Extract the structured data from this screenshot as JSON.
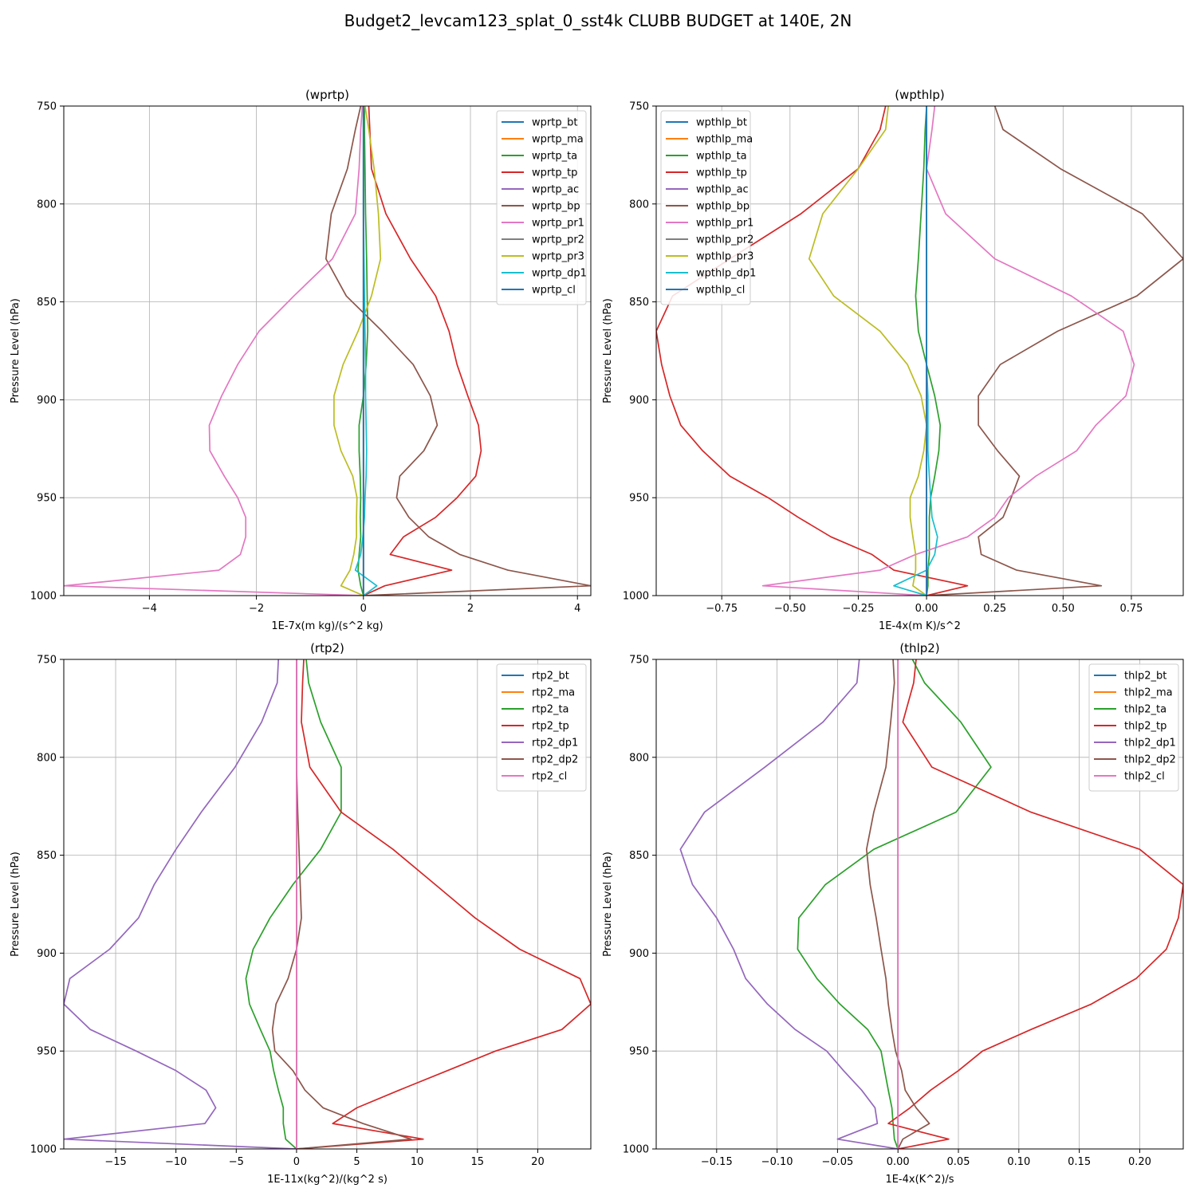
{
  "figure": {
    "suptitle": "Budget2_levcam123_splat_0_sst4k CLUBB BUDGET at 140E, 2N"
  },
  "colors": {
    "grid": "#b0b0b0",
    "palette": [
      "#1f77b4",
      "#ff7f0e",
      "#2ca02c",
      "#d62728",
      "#9467bd",
      "#8c564b",
      "#e377c2",
      "#7f7f7f",
      "#bcbd22",
      "#17becf",
      "#1f77b4"
    ]
  },
  "levels": [
    750,
    762,
    782,
    805,
    828,
    847,
    865,
    882,
    898,
    913,
    926,
    939,
    950,
    960,
    970,
    979,
    987,
    995,
    1000
  ],
  "chart_data": [
    {
      "type": "line",
      "title": "(wprtp)",
      "xlabel": "1E-7x(m kg)/(s^2 kg)",
      "ylabel": "Pressure Level (hPa)",
      "xlim": [
        -5.6,
        4.25
      ],
      "ylim": [
        1000,
        750
      ],
      "xticks": [
        -4,
        -2,
        0,
        2,
        4
      ],
      "xtick_labels": [
        "−4",
        "−2",
        "0",
        "2",
        "4"
      ],
      "yticks": [
        750,
        800,
        850,
        900,
        950,
        1000
      ],
      "ytick_labels": [
        "750",
        "800",
        "850",
        "900",
        "950",
        "1000"
      ],
      "grid": true,
      "legend": "top-right",
      "series": [
        {
          "name": "wprtp_bt",
          "values": [
            0,
            0,
            0,
            0,
            0,
            0,
            0,
            0,
            0,
            0,
            0,
            0,
            0,
            0,
            0,
            0,
            0,
            0,
            0
          ]
        },
        {
          "name": "wprtp_ma",
          "values": [
            0,
            0,
            0,
            0,
            0,
            0,
            0,
            0,
            0,
            0,
            0,
            0,
            0,
            0,
            0,
            0,
            0,
            0,
            0
          ]
        },
        {
          "name": "wprtp_ta",
          "values": [
            0.02,
            0.02,
            0.03,
            0.04,
            0.06,
            0.07,
            0.08,
            0.05,
            0.0,
            -0.08,
            -0.08,
            -0.06,
            -0.05,
            -0.06,
            -0.05,
            -0.08,
            -0.1,
            -0.05,
            0
          ]
        },
        {
          "name": "wprtp_tp",
          "values": [
            0.1,
            0.12,
            0.15,
            0.42,
            0.88,
            1.35,
            1.6,
            1.75,
            1.95,
            2.15,
            2.2,
            2.1,
            1.75,
            1.35,
            0.75,
            0.5,
            1.65,
            0.4,
            0
          ]
        },
        {
          "name": "wprtp_ac",
          "values": [
            0,
            0,
            0,
            0,
            0,
            0,
            0,
            0,
            0,
            0,
            0,
            0,
            0,
            0,
            0,
            0,
            0,
            0,
            0
          ]
        },
        {
          "name": "wprtp_bp",
          "values": [
            -0.05,
            -0.15,
            -0.3,
            -0.6,
            -0.7,
            -0.32,
            0.35,
            0.93,
            1.25,
            1.38,
            1.13,
            0.68,
            0.62,
            0.85,
            1.22,
            1.8,
            2.7,
            4.25,
            0
          ]
        },
        {
          "name": "wprtp_pr1",
          "values": [
            -0.02,
            -0.05,
            -0.08,
            -0.15,
            -0.58,
            -1.3,
            -1.95,
            -2.35,
            -2.65,
            -2.88,
            -2.87,
            -2.6,
            -2.35,
            -2.2,
            -2.2,
            -2.3,
            -2.7,
            -5.6,
            0
          ]
        },
        {
          "name": "wprtp_pr2",
          "values": [
            0,
            0,
            0,
            0,
            0,
            0,
            0,
            0,
            0,
            0,
            0,
            0,
            0,
            0,
            0,
            0,
            0,
            0,
            0
          ]
        },
        {
          "name": "wprtp_pr3",
          "values": [
            0.03,
            0.1,
            0.2,
            0.28,
            0.32,
            0.15,
            -0.1,
            -0.38,
            -0.55,
            -0.55,
            -0.42,
            -0.2,
            -0.12,
            -0.13,
            -0.13,
            -0.18,
            -0.25,
            -0.42,
            0
          ]
        },
        {
          "name": "wprtp_dp1",
          "values": [
            0,
            0,
            0,
            0,
            0.01,
            0.02,
            0.03,
            0.04,
            0.04,
            0.05,
            0.06,
            0.05,
            0.03,
            0.02,
            -0.01,
            -0.05,
            -0.15,
            0.25,
            0
          ]
        },
        {
          "name": "wprtp_cl",
          "values": [
            0,
            0,
            0,
            0,
            0,
            0,
            0,
            0,
            0,
            0,
            0,
            0,
            0,
            0,
            0,
            0,
            0,
            0,
            0
          ]
        }
      ]
    },
    {
      "type": "line",
      "title": "(wpthlp)",
      "xlabel": "1E-4x(m K)/s^2",
      "ylabel": "Pressure Level (hPa)",
      "xlim": [
        -0.99,
        0.94
      ],
      "ylim": [
        1000,
        750
      ],
      "xticks": [
        -0.75,
        -0.5,
        -0.25,
        0.0,
        0.25,
        0.5,
        0.75
      ],
      "xtick_labels": [
        "−0.75",
        "−0.50",
        "−0.25",
        "0.00",
        "0.25",
        "0.50",
        "0.75"
      ],
      "yticks": [
        750,
        800,
        850,
        900,
        950,
        1000
      ],
      "ytick_labels": [
        "750",
        "800",
        "850",
        "900",
        "950",
        "1000"
      ],
      "grid": true,
      "legend": "top-left",
      "series": [
        {
          "name": "wpthlp_bt",
          "values": [
            0,
            0,
            0,
            0,
            0,
            0,
            0,
            0,
            0,
            0,
            0,
            0,
            0,
            0,
            0,
            0,
            0,
            0,
            0
          ]
        },
        {
          "name": "wpthlp_ma",
          "values": [
            0,
            0,
            0,
            0,
            0,
            0,
            0,
            0,
            0,
            0,
            0,
            0,
            0,
            0,
            0,
            0,
            0,
            0,
            0
          ]
        },
        {
          "name": "wpthlp_ta",
          "values": [
            0,
            -0.005,
            -0.01,
            -0.02,
            -0.03,
            -0.04,
            -0.03,
            0,
            0.03,
            0.05,
            0.045,
            0.03,
            0.015,
            0.01,
            0.01,
            0.01,
            0.005,
            0.005,
            0
          ]
        },
        {
          "name": "wpthlp_tp",
          "values": [
            -0.15,
            -0.17,
            -0.25,
            -0.46,
            -0.72,
            -0.93,
            -0.99,
            -0.97,
            -0.94,
            -0.9,
            -0.82,
            -0.72,
            -0.58,
            -0.47,
            -0.35,
            -0.2,
            -0.12,
            0.15,
            0
          ]
        },
        {
          "name": "wpthlp_ac",
          "values": [
            0,
            0,
            0,
            0,
            0,
            0,
            0,
            0,
            0,
            0,
            0,
            0,
            0,
            0,
            0,
            0,
            0,
            0,
            0
          ]
        },
        {
          "name": "wpthlp_bp",
          "values": [
            0.25,
            0.28,
            0.49,
            0.79,
            0.94,
            0.77,
            0.48,
            0.27,
            0.19,
            0.19,
            0.26,
            0.34,
            0.31,
            0.28,
            0.19,
            0.2,
            0.33,
            0.64,
            0
          ]
        },
        {
          "name": "wpthlp_pr1",
          "values": [
            0.03,
            0.02,
            0.0,
            0.07,
            0.25,
            0.53,
            0.72,
            0.76,
            0.73,
            0.62,
            0.55,
            0.4,
            0.3,
            0.25,
            0.15,
            -0.04,
            -0.17,
            -0.6,
            0
          ]
        },
        {
          "name": "wpthlp_pr2",
          "values": [
            0,
            0,
            0,
            0,
            0,
            0,
            0,
            0,
            0,
            0,
            0,
            0,
            0,
            0,
            0,
            0,
            0,
            0,
            0
          ]
        },
        {
          "name": "wpthlp_pr3",
          "values": [
            -0.14,
            -0.15,
            -0.25,
            -0.38,
            -0.43,
            -0.34,
            -0.17,
            -0.07,
            -0.02,
            0.0,
            -0.01,
            -0.03,
            -0.06,
            -0.06,
            -0.05,
            -0.04,
            -0.04,
            -0.05,
            0
          ]
        },
        {
          "name": "wpthlp_dp1",
          "values": [
            0,
            0,
            0,
            0,
            0,
            0,
            0,
            0,
            0.005,
            0.005,
            0.005,
            0.01,
            0.015,
            0.02,
            0.04,
            0.03,
            0.0,
            -0.12,
            0
          ]
        },
        {
          "name": "wpthlp_cl",
          "values": [
            0,
            0,
            0,
            0,
            0,
            0,
            0,
            0,
            0,
            0,
            0,
            0,
            0,
            0,
            0,
            0,
            0,
            0,
            0
          ]
        }
      ]
    },
    {
      "type": "line",
      "title": "(rtp2)",
      "xlabel": "1E-11x(kg^2)/(kg^2 s)",
      "ylabel": "Pressure Level (hPa)",
      "xlim": [
        -19.3,
        24.4
      ],
      "ylim": [
        1000,
        750
      ],
      "xticks": [
        -15,
        -10,
        -5,
        0,
        5,
        10,
        15,
        20
      ],
      "xtick_labels": [
        "−15",
        "−10",
        "−5",
        "0",
        "5",
        "10",
        "15",
        "20"
      ],
      "yticks": [
        750,
        800,
        850,
        900,
        950,
        1000
      ],
      "ytick_labels": [
        "750",
        "800",
        "850",
        "900",
        "950",
        "1000"
      ],
      "grid": true,
      "legend": "top-right",
      "series": [
        {
          "name": "rtp2_bt",
          "values": [
            0,
            0,
            0,
            0,
            0,
            0,
            0,
            0,
            0,
            0,
            0,
            0,
            0,
            0,
            0,
            0,
            0,
            0,
            0
          ]
        },
        {
          "name": "rtp2_ma",
          "values": [
            0,
            0,
            0,
            0,
            0,
            0,
            0,
            0,
            0,
            0,
            0,
            0,
            0,
            0,
            0,
            0,
            0,
            0,
            0
          ]
        },
        {
          "name": "rtp2_ta",
          "values": [
            0.8,
            1.0,
            2.0,
            3.7,
            3.7,
            2.0,
            -0.3,
            -2.2,
            -3.6,
            -4.2,
            -3.9,
            -3.0,
            -2.2,
            -1.9,
            -1.5,
            -1.1,
            -1.1,
            -0.9,
            0
          ]
        },
        {
          "name": "rtp2_tp",
          "values": [
            0.6,
            0.5,
            0.4,
            1.1,
            3.7,
            8.0,
            11.5,
            14.8,
            18.5,
            23.5,
            24.4,
            22.0,
            16.5,
            12.5,
            8.5,
            5.0,
            3.0,
            10.5,
            0
          ]
        },
        {
          "name": "rtp2_dp1",
          "values": [
            -1.5,
            -1.6,
            -2.9,
            -5.1,
            -7.9,
            -10.0,
            -11.8,
            -13.1,
            -15.5,
            -18.8,
            -19.3,
            -17.1,
            -13.3,
            -10.0,
            -7.5,
            -6.7,
            -7.6,
            -19.3,
            0
          ]
        },
        {
          "name": "rtp2_dp2",
          "values": [
            0,
            0,
            0,
            0,
            0.1,
            0.2,
            0.3,
            0.4,
            0,
            -0.7,
            -1.7,
            -2.0,
            -1.8,
            -0.3,
            0.7,
            2.2,
            5.5,
            9.5,
            0
          ]
        },
        {
          "name": "rtp2_cl",
          "values": [
            0,
            0,
            0,
            0,
            0,
            0,
            0,
            0,
            0,
            0,
            0,
            0,
            0,
            0,
            0,
            0,
            0,
            0,
            0
          ]
        }
      ]
    },
    {
      "type": "line",
      "title": "(thlp2)",
      "xlabel": "1E-4x(K^2)/s",
      "ylabel": "Pressure Level (hPa)",
      "xlim": [
        -0.2,
        0.236
      ],
      "ylim": [
        1000,
        750
      ],
      "xticks": [
        -0.15,
        -0.1,
        -0.05,
        0.0,
        0.05,
        0.1,
        0.15,
        0.2
      ],
      "xtick_labels": [
        "−0.15",
        "−0.10",
        "−0.05",
        "0.00",
        "0.05",
        "0.10",
        "0.15",
        "0.20"
      ],
      "yticks": [
        750,
        800,
        850,
        900,
        950,
        1000
      ],
      "ytick_labels": [
        "750",
        "800",
        "850",
        "900",
        "950",
        "1000"
      ],
      "grid": true,
      "legend": "top-right",
      "series": [
        {
          "name": "thlp2_bt",
          "values": [
            0,
            0,
            0,
            0,
            0,
            0,
            0,
            0,
            0,
            0,
            0,
            0,
            0,
            0,
            0,
            0,
            0,
            0,
            0
          ]
        },
        {
          "name": "thlp2_ma",
          "values": [
            0,
            0,
            0,
            0,
            0,
            0,
            0,
            0,
            0,
            0,
            0,
            0,
            0,
            0,
            0,
            0,
            0,
            0,
            0
          ]
        },
        {
          "name": "thlp2_ta",
          "values": [
            0.012,
            0.022,
            0.052,
            0.077,
            0.048,
            -0.02,
            -0.06,
            -0.082,
            -0.083,
            -0.067,
            -0.048,
            -0.025,
            -0.014,
            -0.011,
            -0.008,
            -0.005,
            -0.004,
            -0.003,
            0
          ]
        },
        {
          "name": "thlp2_tp",
          "values": [
            0.015,
            0.013,
            0.004,
            0.028,
            0.11,
            0.2,
            0.236,
            0.232,
            0.222,
            0.197,
            0.16,
            0.11,
            0.07,
            0.05,
            0.027,
            0.01,
            -0.008,
            0.042,
            0
          ]
        },
        {
          "name": "thlp2_dp1",
          "values": [
            -0.032,
            -0.034,
            -0.062,
            -0.11,
            -0.16,
            -0.18,
            -0.17,
            -0.15,
            -0.136,
            -0.126,
            -0.108,
            -0.085,
            -0.059,
            -0.045,
            -0.03,
            -0.019,
            -0.017,
            -0.05,
            0
          ]
        },
        {
          "name": "thlp2_dp2",
          "values": [
            -0.004,
            -0.003,
            -0.006,
            -0.01,
            -0.02,
            -0.026,
            -0.023,
            -0.018,
            -0.014,
            -0.01,
            -0.008,
            -0.005,
            -0.002,
            0.003,
            0.006,
            0.015,
            0.026,
            0.004,
            0
          ]
        },
        {
          "name": "thlp2_cl",
          "values": [
            0,
            0,
            0,
            0,
            0,
            0,
            0,
            0,
            0,
            0,
            0,
            0,
            0,
            0,
            0,
            0,
            0,
            0,
            0
          ]
        }
      ]
    }
  ]
}
